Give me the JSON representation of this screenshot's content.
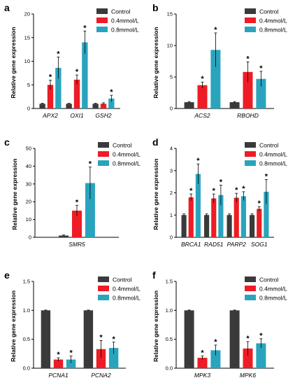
{
  "colors": {
    "Control": "#3a3a3a",
    "0.4mmol/L": "#ee1c24",
    "0.8mmol/L": "#2aa4bd"
  },
  "chart_data": [
    {
      "panel": "a",
      "type": "bar",
      "categories": [
        "APX2",
        "OXI1",
        "GSH2"
      ],
      "series": [
        {
          "name": "Control",
          "values": [
            1,
            1,
            1
          ],
          "errors": [
            0.1,
            0.1,
            0.1
          ]
        },
        {
          "name": "0.4mmol/L",
          "values": [
            5,
            6.1,
            1
          ],
          "errors": [
            1.0,
            1.0,
            0.2
          ]
        },
        {
          "name": "0.8mmol/L",
          "values": [
            8.6,
            14,
            2.1
          ],
          "errors": [
            2.3,
            2.4,
            0.7
          ]
        }
      ],
      "stars": [
        [
          false,
          false,
          false
        ],
        [
          true,
          true,
          false
        ],
        [
          true,
          true,
          true
        ]
      ],
      "ylabel": "Relative gene expression",
      "ylim": [
        0,
        20
      ],
      "yticks": [
        0,
        5,
        10,
        15,
        20
      ],
      "legend": [
        "Control",
        "0.4mmol/L",
        "0.8mmol/L"
      ]
    },
    {
      "panel": "b",
      "type": "bar",
      "categories": [
        "ACS2",
        "RBOHD"
      ],
      "series": [
        {
          "name": "Control",
          "values": [
            1,
            1
          ],
          "errors": [
            0.1,
            0.1
          ]
        },
        {
          "name": "0.4mmol/L",
          "values": [
            3.7,
            5.8
          ],
          "errors": [
            0.5,
            1.6
          ]
        },
        {
          "name": "0.8mmol/L",
          "values": [
            9.3,
            4.7
          ],
          "errors": [
            2.7,
            1.2
          ]
        }
      ],
      "stars": [
        [
          false,
          false
        ],
        [
          true,
          true
        ],
        [
          true,
          true
        ]
      ],
      "ylabel": "Relative gene expression",
      "ylim": [
        0,
        15
      ],
      "yticks": [
        0,
        5,
        10,
        15
      ],
      "legend": [
        "Control",
        "0.4mmol/L",
        "0.8mmol/L"
      ]
    },
    {
      "panel": "c",
      "type": "bar",
      "categories": [
        "SMR5"
      ],
      "series": [
        {
          "name": "Control",
          "values": [
            1
          ],
          "errors": [
            0.3
          ]
        },
        {
          "name": "0.4mmol/L",
          "values": [
            15
          ],
          "errors": [
            3
          ]
        },
        {
          "name": "0.8mmol/L",
          "values": [
            30.5
          ],
          "errors": [
            9
          ]
        }
      ],
      "stars": [
        [
          false
        ],
        [
          true
        ],
        [
          true
        ]
      ],
      "ylabel": "Relative gene expression",
      "ylim": [
        0,
        50
      ],
      "yticks": [
        0,
        10,
        20,
        30,
        40,
        50
      ],
      "legend": [
        "Control",
        "0.4mmol/L",
        "0.8mmol/L"
      ]
    },
    {
      "panel": "d",
      "type": "bar",
      "categories": [
        "BRCA1",
        "RAD51",
        "PARP2",
        "SOG1"
      ],
      "series": [
        {
          "name": "Control",
          "values": [
            1,
            1,
            1,
            1
          ],
          "errors": [
            0.05,
            0.05,
            0.05,
            0.05
          ]
        },
        {
          "name": "0.4mmol/L",
          "values": [
            1.8,
            1.75,
            1.78,
            1.28
          ],
          "errors": [
            0.15,
            0.2,
            0.2,
            0.1
          ]
        },
        {
          "name": "0.8mmol/L",
          "values": [
            2.85,
            1.9,
            1.85,
            2.05
          ],
          "errors": [
            0.45,
            0.45,
            0.2,
            0.55
          ]
        }
      ],
      "stars": [
        [
          false,
          false,
          false,
          false
        ],
        [
          true,
          true,
          true,
          true
        ],
        [
          true,
          true,
          true,
          true
        ]
      ],
      "ylabel": "Relative gene expression",
      "ylim": [
        0,
        4
      ],
      "yticks": [
        0,
        1,
        2,
        3,
        4
      ],
      "legend": [
        "Control",
        "0.4mmol/L",
        "0.8mmol/L"
      ]
    },
    {
      "panel": "e",
      "type": "bar",
      "categories": [
        "PCNA1",
        "PCNA2"
      ],
      "series": [
        {
          "name": "Control",
          "values": [
            1,
            1
          ],
          "errors": [
            0.005,
            0.005
          ]
        },
        {
          "name": "0.4mmol/L",
          "values": [
            0.15,
            0.33
          ],
          "errors": [
            0.03,
            0.15
          ]
        },
        {
          "name": "0.8mmol/L",
          "values": [
            0.15,
            0.35
          ],
          "errors": [
            0.06,
            0.1
          ]
        }
      ],
      "stars": [
        [
          false,
          false
        ],
        [
          true,
          true
        ],
        [
          true,
          true
        ]
      ],
      "ylabel": "Relative gene expression",
      "ylim": [
        0,
        1.5
      ],
      "yticks": [
        "0.0",
        "0.5",
        "1.0",
        "1.5"
      ],
      "legend": [
        "Control",
        "0.4mmol/L",
        "0.8mmol/L"
      ]
    },
    {
      "panel": "f",
      "type": "bar",
      "categories": [
        "MPK3",
        "MPK6"
      ],
      "series": [
        {
          "name": "Control",
          "values": [
            1,
            1
          ],
          "errors": [
            0.005,
            0.005
          ]
        },
        {
          "name": "0.4mmol/L",
          "values": [
            0.18,
            0.34
          ],
          "errors": [
            0.03,
            0.12
          ]
        },
        {
          "name": "0.8mmol/L",
          "values": [
            0.31,
            0.43
          ],
          "errors": [
            0.09,
            0.08
          ]
        }
      ],
      "stars": [
        [
          false,
          false
        ],
        [
          true,
          true
        ],
        [
          true,
          true
        ]
      ],
      "ylabel": "Relative gene expression",
      "ylim": [
        0,
        1.5
      ],
      "yticks": [
        "0.0",
        "0.5",
        "1.0",
        "1.5"
      ],
      "legend": [
        "Control",
        "0.4mmol/L",
        "0.8mmol/L"
      ]
    }
  ]
}
